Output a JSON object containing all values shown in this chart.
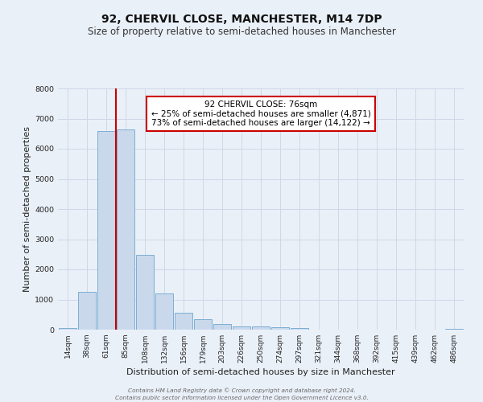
{
  "title": "92, CHERVIL CLOSE, MANCHESTER, M14 7DP",
  "subtitle": "Size of property relative to semi-detached houses in Manchester",
  "xlabel": "Distribution of semi-detached houses by size in Manchester",
  "ylabel": "Number of semi-detached properties",
  "categories": [
    "14sqm",
    "38sqm",
    "61sqm",
    "85sqm",
    "108sqm",
    "132sqm",
    "156sqm",
    "179sqm",
    "203sqm",
    "226sqm",
    "250sqm",
    "274sqm",
    "297sqm",
    "321sqm",
    "344sqm",
    "368sqm",
    "392sqm",
    "415sqm",
    "439sqm",
    "462sqm",
    "486sqm"
  ],
  "values": [
    60,
    1250,
    6580,
    6650,
    2480,
    1190,
    560,
    340,
    200,
    120,
    110,
    80,
    60,
    0,
    0,
    0,
    0,
    0,
    0,
    0,
    30
  ],
  "bar_color": "#c9d9eb",
  "bar_edge_color": "#7dadd4",
  "property_size": "76sqm",
  "pct_smaller": 25,
  "num_smaller": "4,871",
  "pct_larger": 73,
  "num_larger": "14,122",
  "annotation_box_color": "#ffffff",
  "annotation_box_edge_color": "#cc0000",
  "vline_color": "#cc0000",
  "vline_x": 2.5,
  "ylim": [
    0,
    8000
  ],
  "yticks": [
    0,
    1000,
    2000,
    3000,
    4000,
    5000,
    6000,
    7000,
    8000
  ],
  "grid_color": "#d0d8e8",
  "background_color": "#eaf0f8",
  "footer_line1": "Contains HM Land Registry data © Crown copyright and database right 2024.",
  "footer_line2": "Contains public sector information licensed under the Open Government Licence v3.0.",
  "title_fontsize": 10,
  "subtitle_fontsize": 8.5,
  "axis_label_fontsize": 8,
  "tick_fontsize": 6.5,
  "annotation_fontsize": 7.5
}
